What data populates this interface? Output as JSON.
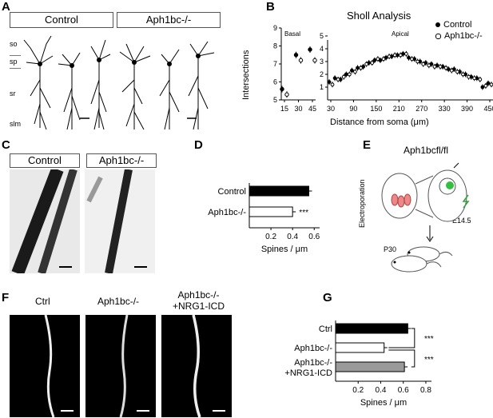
{
  "panels": {
    "A": "A",
    "B": "B",
    "C": "C",
    "D": "D",
    "E": "E",
    "F": "F",
    "G": "G"
  },
  "panelA": {
    "control_label": "Control",
    "mutant_label": "Aph1bc-/-",
    "layers": [
      "so",
      "sp",
      "sr",
      "slm"
    ]
  },
  "panelB": {
    "title": "Sholl Analysis",
    "basal_label": "Basal",
    "apical_label": "Apical",
    "ylabel": "Intersections",
    "xlabel": "Distance from soma (μm)",
    "legend_control": "Control",
    "legend_mutant": "Aph1bc-/-"
  },
  "panelC": {
    "control_label": "Control",
    "mutant_label": "Aph1bc-/-"
  },
  "panelE": {
    "title": "Aph1bcfl/fl",
    "electroporation": "Electroporation",
    "e_age": "E14.5",
    "p_age": "P30"
  },
  "panelF": {
    "ctrl_label": "Ctrl",
    "mutant_label": "Aph1bc-/-",
    "rescue_label_1": "Aph1bc-/-",
    "rescue_label_2": "+NRG1-ICD"
  },
  "chart_data": [
    {
      "id": "B-basal",
      "type": "scatter",
      "title": "Sholl Analysis",
      "subtitle": "Basal",
      "ylabel": "Intersections",
      "xlabel": "Distance from soma (μm)",
      "x": [
        15,
        30,
        45
      ],
      "ylim": [
        5,
        9
      ],
      "yticks": [
        5,
        6,
        7,
        8,
        9
      ],
      "series": [
        {
          "name": "Control",
          "values": [
            5.6,
            7.5,
            7.8
          ]
        },
        {
          "name": "Aph1bc-/-",
          "values": [
            5.3,
            7.2,
            7.2
          ]
        }
      ]
    },
    {
      "id": "B-apical",
      "type": "scatter",
      "subtitle": "Apical",
      "xlabel": "Distance from soma (μm)",
      "x": [
        30,
        45,
        60,
        75,
        90,
        105,
        120,
        135,
        150,
        165,
        180,
        195,
        210,
        225,
        240,
        255,
        270,
        285,
        300,
        315,
        330,
        345,
        360,
        375,
        390,
        405,
        420,
        435,
        450
      ],
      "xticks": [
        30,
        90,
        150,
        210,
        270,
        330,
        390,
        450
      ],
      "ylim": [
        0,
        5
      ],
      "yticks": [
        1,
        2,
        3,
        4,
        5
      ],
      "series": [
        {
          "name": "Control",
          "values": [
            1.4,
            1.7,
            1.6,
            2.0,
            2.3,
            2.5,
            2.6,
            2.9,
            3.1,
            3.1,
            3.3,
            3.4,
            3.5,
            3.6,
            3.3,
            3.2,
            3.0,
            2.9,
            2.8,
            2.7,
            2.6,
            2.4,
            2.4,
            2.2,
            2.0,
            1.8,
            1.7,
            1.0,
            1.3
          ]
        },
        {
          "name": "Aph1bc-/-",
          "values": [
            1.2,
            1.6,
            1.8,
            2.0,
            2.2,
            2.5,
            2.8,
            2.9,
            3.2,
            3.2,
            3.4,
            3.5,
            3.5,
            3.6,
            3.2,
            3.0,
            2.8,
            2.7,
            2.6,
            2.6,
            2.5,
            2.3,
            2.2,
            2.0,
            1.8,
            1.7,
            1.6,
            1.1,
            1.2
          ]
        }
      ]
    },
    {
      "id": "D",
      "type": "bar",
      "orientation": "horizontal",
      "categories": [
        "Control",
        "Aph1bc-/-"
      ],
      "values": [
        0.55,
        0.4
      ],
      "colors": [
        "#000000",
        "#ffffff"
      ],
      "xlabel": "Spines / μm",
      "xticks": [
        0.2,
        0.4,
        0.6
      ],
      "xlim": [
        0.0,
        0.65
      ],
      "significance": [
        "",
        "***"
      ]
    },
    {
      "id": "G",
      "type": "bar",
      "orientation": "horizontal",
      "categories": [
        "Ctrl",
        "Aph1bc-/-",
        "Aph1bc-/- +NRG1-ICD"
      ],
      "values": [
        0.64,
        0.43,
        0.61
      ],
      "colors": [
        "#000000",
        "#ffffff",
        "#9a9a9a"
      ],
      "xlabel": "Spines / μm",
      "xticks": [
        0.2,
        0.4,
        0.6,
        0.8
      ],
      "xlim": [
        0.0,
        0.85
      ],
      "significance": [
        "***",
        "***"
      ]
    }
  ]
}
